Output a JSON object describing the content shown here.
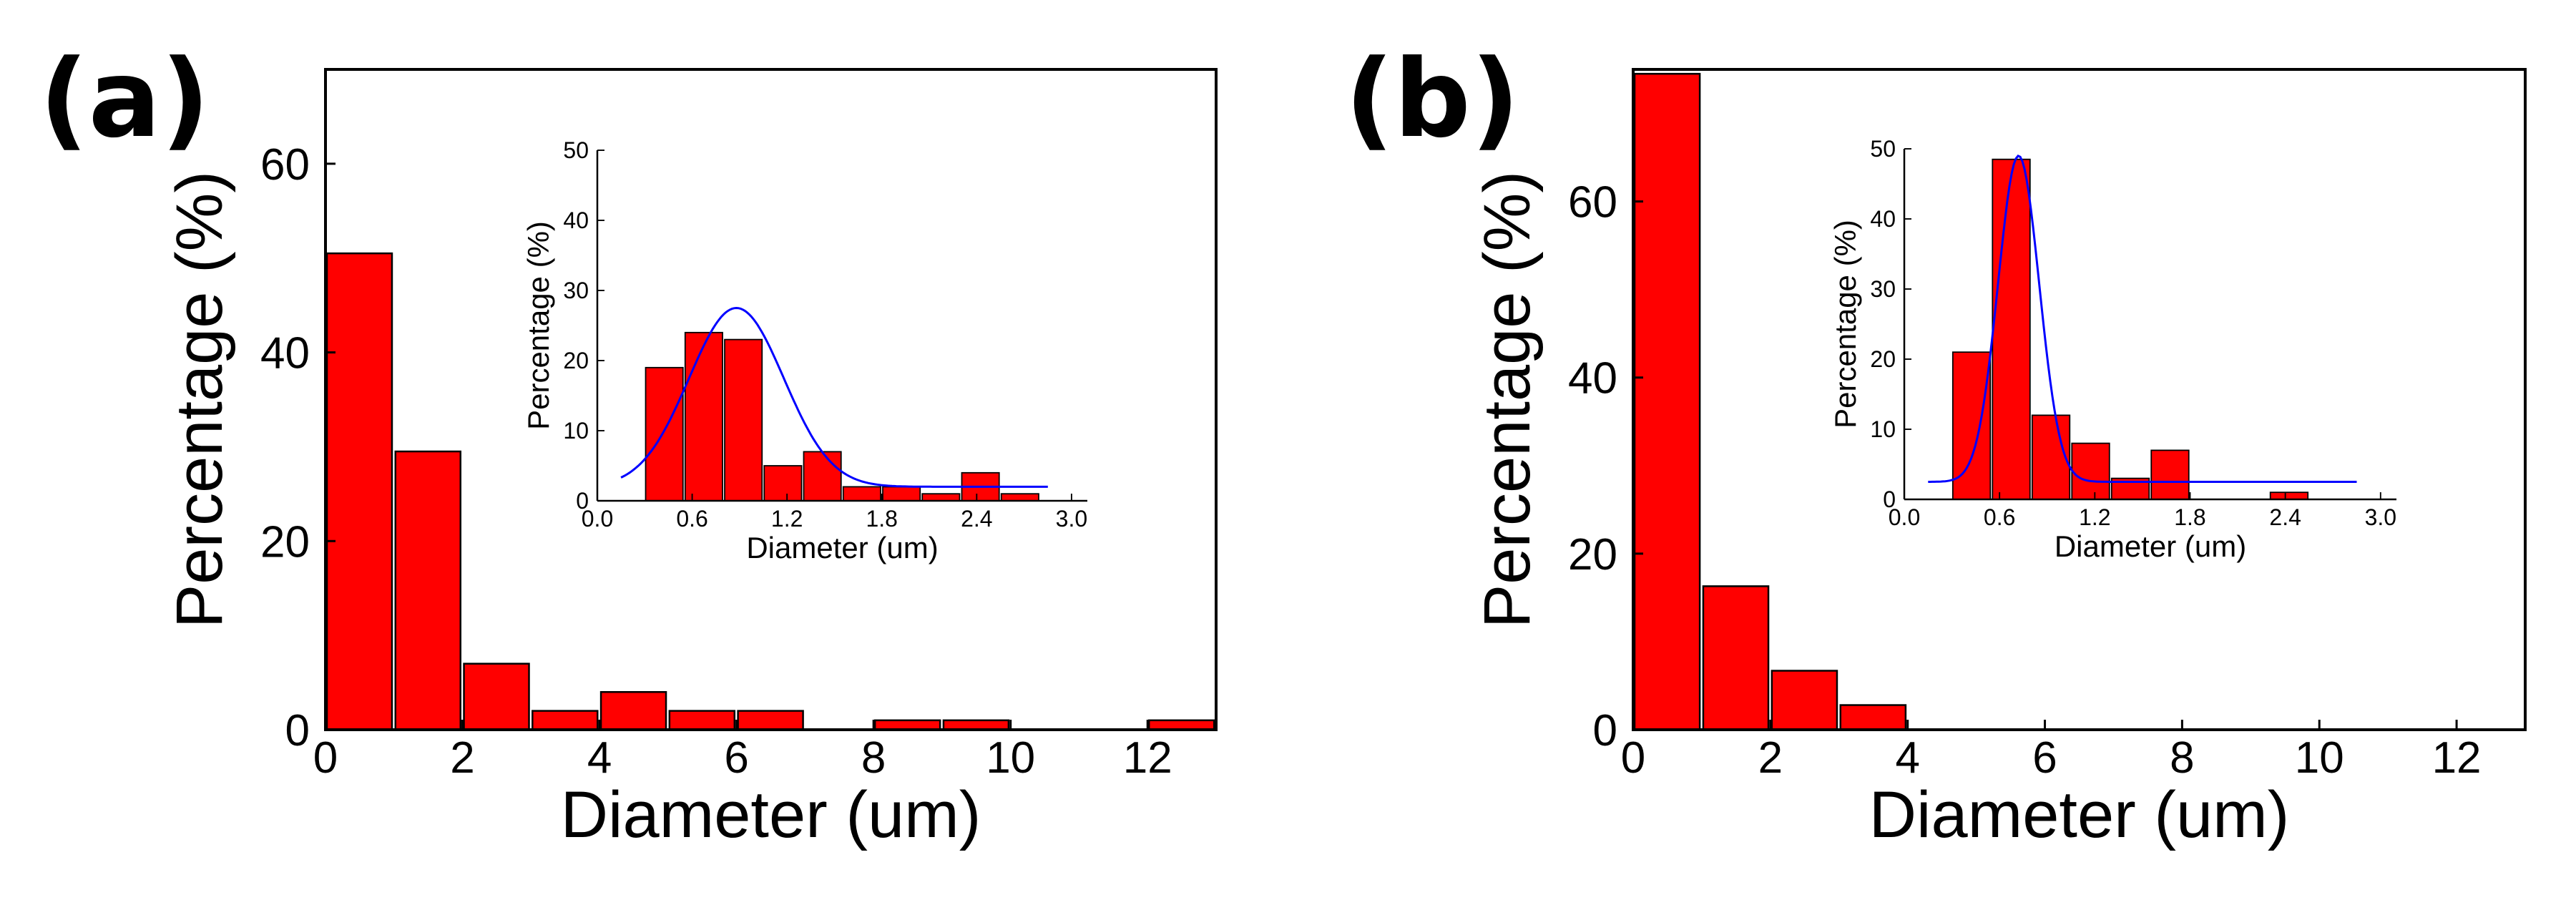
{
  "figure": {
    "panels": [
      {
        "label": "(a)"
      },
      {
        "label": "(b)"
      }
    ]
  },
  "chart_data": [
    {
      "panel": "(a)",
      "role": "main",
      "type": "bar",
      "xlabel": "Diameter (um)",
      "ylabel": "Percentage (%)",
      "xlim": [
        0,
        13
      ],
      "ylim": [
        0,
        70
      ],
      "xticks": [
        0,
        2,
        4,
        6,
        8,
        10,
        12
      ],
      "yticks": [
        0,
        20,
        40,
        60
      ],
      "bar_color": "#ff0000",
      "bins": [
        {
          "from": 0,
          "to": 1,
          "value": 50.5
        },
        {
          "from": 1,
          "to": 2,
          "value": 29.5
        },
        {
          "from": 2,
          "to": 3,
          "value": 7
        },
        {
          "from": 3,
          "to": 4,
          "value": 2
        },
        {
          "from": 4,
          "to": 5,
          "value": 4
        },
        {
          "from": 5,
          "to": 6,
          "value": 2
        },
        {
          "from": 6,
          "to": 7,
          "value": 2
        },
        {
          "from": 8,
          "to": 9,
          "value": 1
        },
        {
          "from": 9,
          "to": 10,
          "value": 1
        },
        {
          "from": 12,
          "to": 13,
          "value": 1
        }
      ]
    },
    {
      "panel": "(a)",
      "role": "inset",
      "type": "bar",
      "xlabel": "Diameter (um)",
      "ylabel": "Percentage (%)",
      "xlim": [
        0,
        3.1
      ],
      "ylim": [
        0,
        50
      ],
      "xticks": [
        0.0,
        0.6,
        1.2,
        1.8,
        2.4,
        3.0
      ],
      "xtick_labels": [
        "0.0",
        "0.6",
        "1.2",
        "1.8",
        "2.4",
        "3.0"
      ],
      "yticks": [
        0,
        10,
        20,
        30,
        40,
        50
      ],
      "bar_color": "#ff0000",
      "fit_color": "#0000ff",
      "bins": [
        {
          "from": 0.3,
          "to": 0.55,
          "value": 19
        },
        {
          "from": 0.55,
          "to": 0.8,
          "value": 24
        },
        {
          "from": 0.8,
          "to": 1.05,
          "value": 23
        },
        {
          "from": 1.05,
          "to": 1.3,
          "value": 5
        },
        {
          "from": 1.3,
          "to": 1.55,
          "value": 7
        },
        {
          "from": 1.55,
          "to": 1.8,
          "value": 2
        },
        {
          "from": 1.8,
          "to": 2.05,
          "value": 2
        },
        {
          "from": 2.05,
          "to": 2.3,
          "value": 1
        },
        {
          "from": 2.3,
          "to": 2.55,
          "value": 4
        },
        {
          "from": 2.55,
          "to": 2.8,
          "value": 1
        }
      ],
      "fit": {
        "type": "gaussian",
        "baseline": 2,
        "amplitude": 25.5,
        "center": 0.88,
        "sigma": 0.3,
        "x_range": [
          0.15,
          2.85
        ]
      }
    },
    {
      "panel": "(b)",
      "role": "main",
      "type": "bar",
      "xlabel": "Diameter (um)",
      "ylabel": "Percentage (%)",
      "xlim": [
        0,
        13
      ],
      "ylim": [
        0,
        75
      ],
      "xticks": [
        0,
        2,
        4,
        6,
        8,
        10,
        12
      ],
      "yticks": [
        0,
        20,
        40,
        60
      ],
      "bar_color": "#ff0000",
      "bins": [
        {
          "from": 0,
          "to": 1,
          "value": 74.5
        },
        {
          "from": 1,
          "to": 2,
          "value": 16.3
        },
        {
          "from": 2,
          "to": 3,
          "value": 6.7
        },
        {
          "from": 3,
          "to": 4,
          "value": 2.8
        }
      ]
    },
    {
      "panel": "(b)",
      "role": "inset",
      "type": "bar",
      "xlabel": "Diameter (um)",
      "ylabel": "Percentage (%)",
      "xlim": [
        0,
        3.1
      ],
      "ylim": [
        0,
        50
      ],
      "xticks": [
        0.0,
        0.6,
        1.2,
        1.8,
        2.4,
        3.0
      ],
      "xtick_labels": [
        "0.0",
        "0.6",
        "1.2",
        "1.8",
        "2.4",
        "3.0"
      ],
      "yticks": [
        0,
        10,
        20,
        30,
        40,
        50
      ],
      "bar_color": "#ff0000",
      "fit_color": "#0000ff",
      "bins": [
        {
          "from": 0.3,
          "to": 0.55,
          "value": 21
        },
        {
          "from": 0.55,
          "to": 0.8,
          "value": 48.5
        },
        {
          "from": 0.8,
          "to": 1.05,
          "value": 12
        },
        {
          "from": 1.05,
          "to": 1.3,
          "value": 8
        },
        {
          "from": 1.3,
          "to": 1.55,
          "value": 3
        },
        {
          "from": 1.55,
          "to": 1.8,
          "value": 7
        },
        {
          "from": 2.3,
          "to": 2.55,
          "value": 1
        }
      ],
      "fit": {
        "type": "gaussian",
        "baseline": 2.5,
        "amplitude": 46.5,
        "center": 0.72,
        "sigma": 0.13,
        "x_range": [
          0.15,
          2.85
        ]
      }
    }
  ]
}
